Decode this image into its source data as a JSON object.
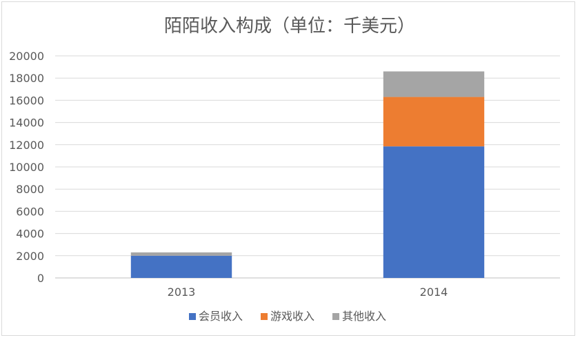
{
  "chart_data": {
    "type": "bar",
    "stacked": true,
    "title": "陌陌收入构成（单位：千美元）",
    "xlabel": "",
    "ylabel": "",
    "categories": [
      "2013",
      "2014"
    ],
    "ylim": [
      0,
      20000
    ],
    "yticks": [
      0,
      2000,
      4000,
      6000,
      8000,
      10000,
      12000,
      14000,
      16000,
      18000,
      20000
    ],
    "grid": true,
    "legend_position": "bottom",
    "series": [
      {
        "name": "会员收入",
        "color": "#4472c4",
        "values": [
          2000,
          11850
        ]
      },
      {
        "name": "游戏收入",
        "color": "#ed7d31",
        "values": [
          0,
          4450
        ]
      },
      {
        "name": "其他收入",
        "color": "#a5a5a5",
        "values": [
          300,
          2300
        ]
      }
    ]
  }
}
